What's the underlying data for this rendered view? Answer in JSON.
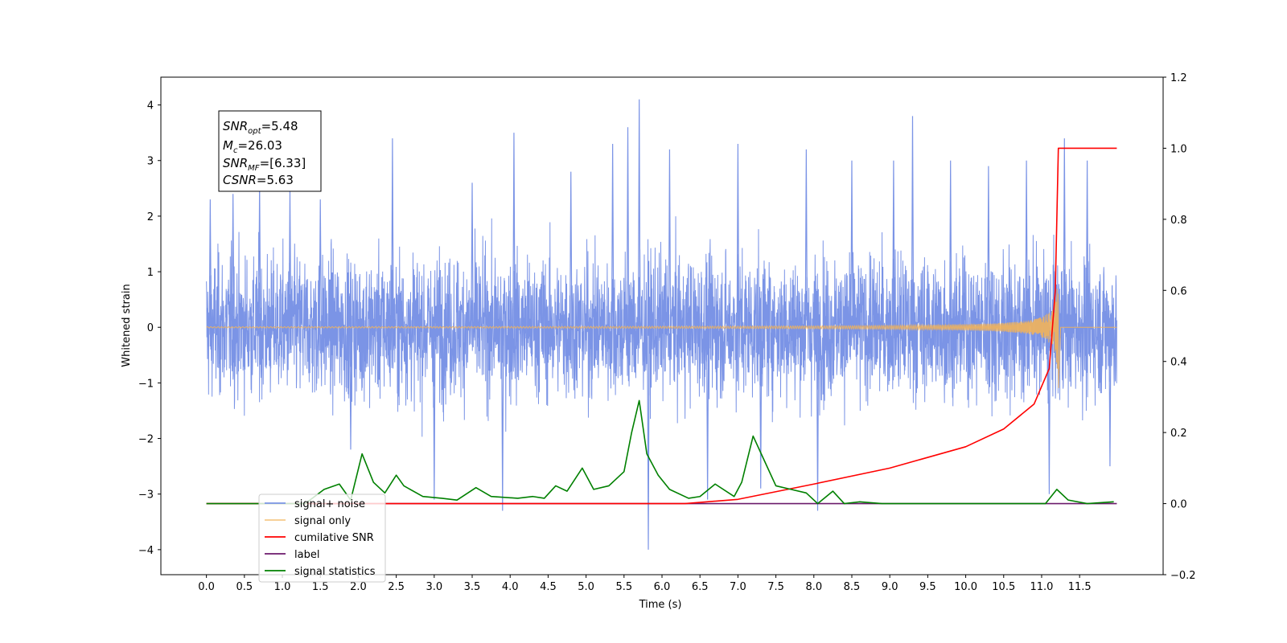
{
  "chart_data": {
    "type": "line",
    "title": "",
    "xlabel": "Time (s)",
    "ylabel": "Whitened strain",
    "ylabel_right": "",
    "xlim": [
      -0.6,
      12.6
    ],
    "ylim": [
      -4.45,
      4.5
    ],
    "ylim_right": [
      -0.2,
      1.2
    ],
    "x_ticks": [
      0.0,
      0.5,
      1.0,
      1.5,
      2.0,
      2.5,
      3.0,
      3.5,
      4.0,
      4.5,
      5.0,
      5.5,
      6.0,
      6.5,
      7.0,
      7.5,
      8.0,
      8.5,
      9.0,
      9.5,
      10.0,
      10.5,
      11.0,
      11.5
    ],
    "x_tick_labels": [
      "0.0",
      "0.5",
      "1.0",
      "1.5",
      "2.0",
      "2.5",
      "3.0",
      "3.5",
      "4.0",
      "4.5",
      "5.0",
      "5.5",
      "6.0",
      "6.5",
      "7.0",
      "7.5",
      "8.0",
      "8.5",
      "9.0",
      "9.5",
      "10.0",
      "10.5",
      "11.0",
      "11.5"
    ],
    "y_ticks": [
      -4,
      -3,
      -2,
      -1,
      0,
      1,
      2,
      3,
      4
    ],
    "y_tick_labels": [
      "−4",
      "−3",
      "−2",
      "−1",
      "0",
      "1",
      "2",
      "3",
      "4"
    ],
    "y_right_ticks": [
      -0.2,
      0.0,
      0.2,
      0.4,
      0.6,
      0.8,
      1.0,
      1.2
    ],
    "y_right_tick_labels": [
      "−0.2",
      "0.0",
      "0.2",
      "0.4",
      "0.6",
      "0.8",
      "1.0",
      "1.2"
    ],
    "grid": false,
    "legend_position": "lower-left",
    "stats_box": {
      "snr_opt": {
        "sym": "SNR",
        "sub": "opt",
        "value": "=5.48"
      },
      "mc": {
        "sym": "M",
        "sub": "c",
        "value": "=26.03"
      },
      "snr_mf": {
        "sym": "SNR",
        "sub": "MF",
        "value": "=[6.33]"
      },
      "csnr": {
        "sym": "CSNR",
        "sub": "",
        "value": "=5.63"
      }
    },
    "series": [
      {
        "name": "signal+ noise",
        "axis": "left",
        "color": "#7b94e6",
        "description_kind": "noise",
        "x_range": [
          0.0,
          11.99
        ],
        "typical_band": [
          -1.7,
          1.7
        ],
        "spikes": [
          [
            0.05,
            2.3
          ],
          [
            0.35,
            2.4
          ],
          [
            0.7,
            2.6
          ],
          [
            1.1,
            2.5
          ],
          [
            1.5,
            2.3
          ],
          [
            1.9,
            -2.2
          ],
          [
            2.45,
            3.4
          ],
          [
            3.0,
            -3.1
          ],
          [
            3.5,
            2.6
          ],
          [
            3.9,
            -3.3
          ],
          [
            4.05,
            3.5
          ],
          [
            4.8,
            2.8
          ],
          [
            5.35,
            3.3
          ],
          [
            5.55,
            3.6
          ],
          [
            5.7,
            4.1
          ],
          [
            5.82,
            -4.0
          ],
          [
            6.1,
            3.2
          ],
          [
            6.6,
            -3.1
          ],
          [
            7.0,
            3.3
          ],
          [
            7.3,
            -2.9
          ],
          [
            7.9,
            3.2
          ],
          [
            8.05,
            -3.3
          ],
          [
            8.5,
            3.0
          ],
          [
            9.05,
            3.0
          ],
          [
            9.3,
            3.8
          ],
          [
            9.8,
            3.0
          ],
          [
            10.3,
            2.9
          ],
          [
            10.8,
            3.0
          ],
          [
            11.1,
            -3.0
          ],
          [
            11.3,
            3.4
          ],
          [
            11.6,
            3.0
          ],
          [
            11.9,
            -2.5
          ]
        ]
      },
      {
        "name": "signal only",
        "axis": "left",
        "color": "#f2b35a",
        "chirp": {
          "t_start": 0.0,
          "t_merge": 11.22,
          "t_end": 11.99,
          "peak_amplitude": 0.55,
          "ringdown_dip": -1.2
        }
      },
      {
        "name": "cumilative SNR",
        "axis": "right",
        "color": "#ff0000",
        "x": [
          0.0,
          6.3,
          7.0,
          8.0,
          9.0,
          10.0,
          10.5,
          10.9,
          11.1,
          11.18,
          11.22,
          11.99
        ],
        "values": [
          0.0,
          0.0,
          0.012,
          0.055,
          0.1,
          0.16,
          0.21,
          0.28,
          0.38,
          0.6,
          1.0,
          1.0
        ]
      },
      {
        "name": "label",
        "axis": "right",
        "color": "#6b1a6b",
        "x": [
          0.0,
          11.99
        ],
        "values": [
          0.0,
          0.0
        ]
      },
      {
        "name": "signal statistics",
        "axis": "right",
        "color": "#008000",
        "x": [
          0.0,
          1.3,
          1.55,
          1.75,
          1.9,
          2.05,
          2.2,
          2.35,
          2.5,
          2.6,
          2.85,
          3.1,
          3.3,
          3.55,
          3.75,
          4.1,
          4.3,
          4.45,
          4.6,
          4.75,
          4.95,
          5.1,
          5.3,
          5.5,
          5.6,
          5.7,
          5.8,
          5.95,
          6.1,
          6.35,
          6.5,
          6.7,
          6.95,
          7.05,
          7.2,
          7.35,
          7.5,
          7.7,
          7.9,
          8.05,
          8.25,
          8.4,
          8.6,
          8.9,
          9.2,
          10.1,
          10.3,
          11.05,
          11.2,
          11.35,
          11.6,
          11.95
        ],
        "values": [
          0.0,
          0.0,
          0.04,
          0.055,
          0.01,
          0.14,
          0.06,
          0.03,
          0.08,
          0.05,
          0.02,
          0.015,
          0.01,
          0.045,
          0.02,
          0.015,
          0.02,
          0.015,
          0.05,
          0.035,
          0.1,
          0.04,
          0.05,
          0.09,
          0.2,
          0.29,
          0.14,
          0.08,
          0.04,
          0.015,
          0.02,
          0.055,
          0.02,
          0.06,
          0.19,
          0.12,
          0.05,
          0.04,
          0.03,
          0.0,
          0.035,
          0.0,
          0.005,
          0.0,
          0.0,
          0.0,
          0.0,
          0.0,
          0.04,
          0.01,
          0.0,
          0.005
        ]
      }
    ]
  }
}
